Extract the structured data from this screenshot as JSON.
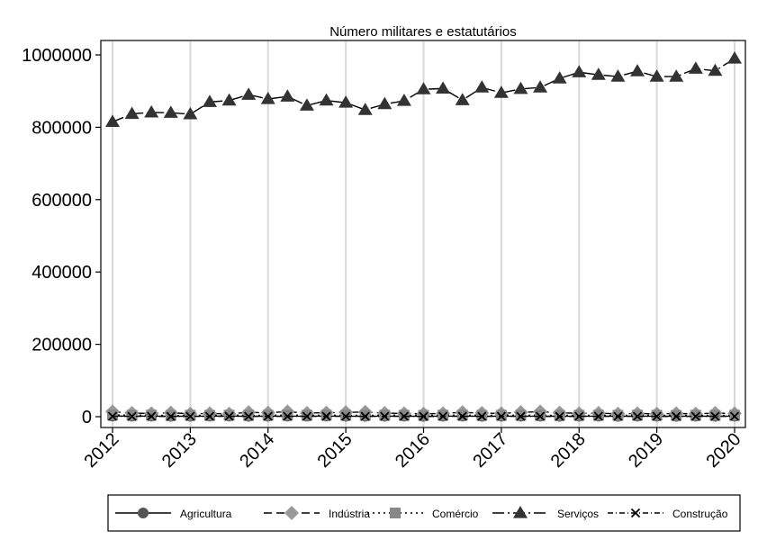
{
  "chart_data": {
    "type": "line",
    "title": "Número militares e estatutários",
    "xlabel": "",
    "ylabel": "",
    "xlim": [
      2012,
      2020
    ],
    "ylim": [
      0,
      1000000
    ],
    "yticks": [
      0,
      200000,
      400000,
      600000,
      800000,
      1000000
    ],
    "ytick_labels": [
      "0",
      "200000",
      "400000",
      "600000",
      "800000",
      "1000000"
    ],
    "xticks": [
      2012,
      2013,
      2014,
      2015,
      2016,
      2017,
      2018,
      2019,
      2020
    ],
    "xtick_labels": [
      "2012",
      "2013",
      "2014",
      "2015",
      "2016",
      "2017",
      "2018",
      "2019",
      "2020"
    ],
    "grid": "vertical",
    "legend_position": "bottom",
    "x": [
      2012,
      2012.25,
      2012.5,
      2012.75,
      2013,
      2013.25,
      2013.5,
      2013.75,
      2014,
      2014.25,
      2014.5,
      2014.75,
      2015,
      2015.25,
      2015.5,
      2015.75,
      2016,
      2016.25,
      2016.5,
      2016.75,
      2017,
      2017.25,
      2017.5,
      2017.75,
      2018,
      2018.25,
      2018.5,
      2018.75,
      2019,
      2019.25,
      2019.5,
      2019.75,
      2020
    ],
    "series": [
      {
        "name": "Agricultura",
        "color": "#555555",
        "marker": "circle",
        "dash": "",
        "values": [
          2000,
          1500,
          1800,
          1200,
          1600,
          1400,
          1700,
          1300,
          1500,
          1600,
          1400,
          1800,
          1500,
          1300,
          1600,
          1400,
          1200,
          1500,
          1700,
          1300,
          1400,
          1600,
          1500,
          1200,
          1400,
          1500,
          1300,
          1600,
          1400,
          1200,
          1500,
          1300,
          1400
        ]
      },
      {
        "name": "Indústria",
        "color": "#999999",
        "marker": "diamond",
        "dash": "9,5",
        "values": [
          14000,
          10000,
          9000,
          11000,
          8000,
          9000,
          8000,
          12000,
          11000,
          14000,
          10000,
          11000,
          12000,
          13000,
          10000,
          9000,
          8000,
          9000,
          12000,
          10000,
          9000,
          12000,
          14000,
          11000,
          9000,
          10000,
          8000,
          9000,
          8000,
          9000,
          8000,
          10000,
          9000
        ]
      },
      {
        "name": "Comércio",
        "color": "#888888",
        "marker": "square",
        "dash": "2,4",
        "values": [
          5000,
          4000,
          4500,
          3500,
          4000,
          3800,
          4200,
          3900,
          4100,
          4300,
          4000,
          4400,
          4100,
          3800,
          4200,
          4000,
          3700,
          4100,
          4300,
          3900,
          4000,
          4200,
          4100,
          3800,
          3900,
          4100,
          3800,
          4200,
          3900,
          3700,
          4000,
          3800,
          3900
        ]
      },
      {
        "name": "Serviços",
        "color": "#333333",
        "marker": "triangle",
        "dash": "13,4,2,4",
        "values": [
          815000,
          837000,
          841000,
          840000,
          836000,
          870000,
          874000,
          890000,
          878000,
          885000,
          860000,
          874000,
          868000,
          848000,
          864000,
          873000,
          905000,
          907000,
          875000,
          910000,
          895000,
          906000,
          910000,
          935000,
          952000,
          945000,
          940000,
          955000,
          940000,
          940000,
          962000,
          956000,
          990000
        ]
      },
      {
        "name": "Construção",
        "color": "#000000",
        "marker": "x",
        "dash": "6,3,1,3",
        "values": [
          1000,
          900,
          1100,
          800,
          1000,
          900,
          1100,
          900,
          1000,
          1000,
          900,
          1100,
          1000,
          900,
          1000,
          900,
          800,
          1000,
          1100,
          900,
          900,
          1000,
          1000,
          800,
          900,
          1000,
          900,
          1000,
          900,
          800,
          1000,
          900,
          900
        ]
      }
    ]
  }
}
